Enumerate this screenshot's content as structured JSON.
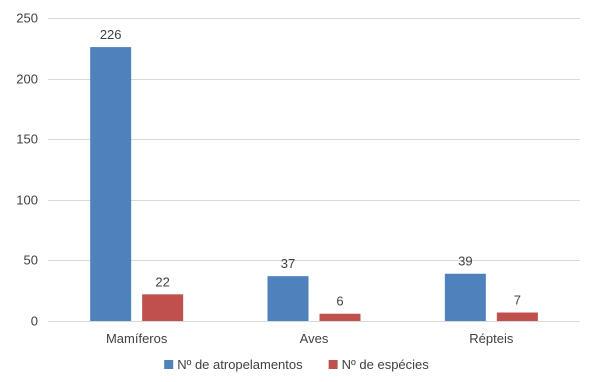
{
  "chart_data": {
    "type": "bar",
    "categories": [
      "Mamíferos",
      "Aves",
      "Répteis"
    ],
    "series": [
      {
        "name": "Nº de atropelamentos",
        "values": [
          226,
          37,
          39
        ],
        "color": "#4f81bd"
      },
      {
        "name": "Nº de espécies",
        "values": [
          22,
          6,
          7
        ],
        "color": "#c0504d"
      }
    ],
    "ylim": [
      0,
      250
    ],
    "yticks": [
      0,
      50,
      100,
      150,
      200,
      250
    ],
    "grid": true,
    "legend_position": "bottom",
    "data_labels": true
  }
}
